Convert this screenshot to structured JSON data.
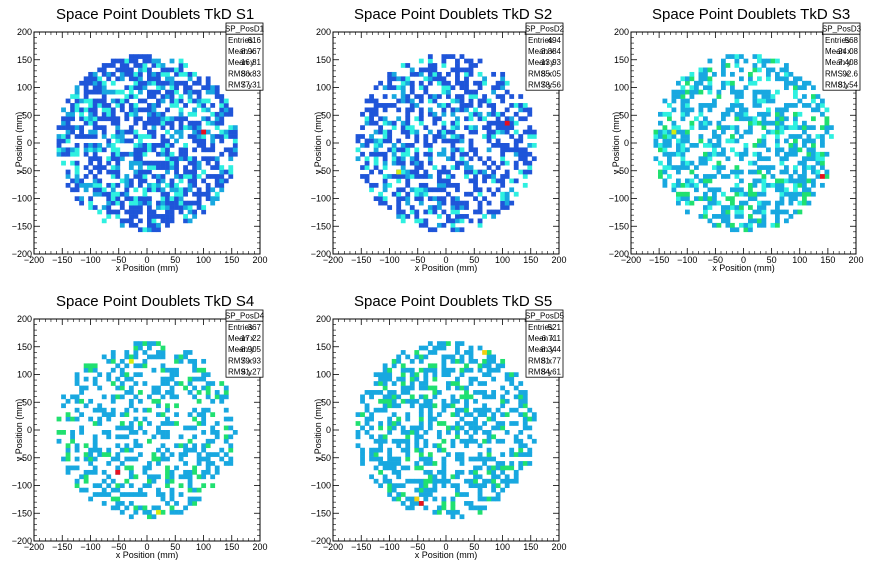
{
  "chart_data": [
    {
      "type": "heatmap",
      "title": "Space Point Doublets TkD S1",
      "xlabel": "x Position (mm)",
      "ylabel": "y Position (mm)",
      "xlim": [
        -200,
        200
      ],
      "ylim": [
        -200,
        200
      ],
      "xticks": [
        "−200",
        "−150",
        "−100",
        "−50",
        "0",
        "50",
        "100",
        "150",
        "200"
      ],
      "yticks": [
        "200",
        "150",
        "100",
        "50",
        "0",
        "−50",
        "−100",
        "−150",
        "−200"
      ],
      "stats": {
        "name": "SP_PosD1",
        "rows": [
          [
            "Entries",
            "616"
          ],
          [
            "Mean x",
            "8.967"
          ],
          [
            "Mean y",
            "-16.81"
          ],
          [
            "RMS x",
            "86.83"
          ],
          [
            "RMS y",
            "77.31"
          ]
        ]
      },
      "bin_size_mm": 8,
      "radius_mm": 160,
      "fill_fraction": 0.62,
      "palette": [
        "#1f55d9",
        "#1f55d9",
        "#1f55d9",
        "#18a8e0",
        "#2ef0e0"
      ],
      "hot_cells": [
        [
          96,
          16,
          "#e8101e"
        ]
      ]
    },
    {
      "type": "heatmap",
      "title": "Space Point Doublets TkD S2",
      "xlabel": "x Position (mm)",
      "ylabel": "y Position (mm)",
      "xlim": [
        -200,
        200
      ],
      "ylim": [
        -200,
        200
      ],
      "xticks": [
        "−200",
        "−150",
        "−100",
        "−50",
        "0",
        "50",
        "100",
        "150",
        "200"
      ],
      "yticks": [
        "200",
        "150",
        "100",
        "50",
        "0",
        "−50",
        "−100",
        "−150",
        "−200"
      ],
      "stats": {
        "name": "SP_PosD2",
        "rows": [
          [
            "Entries",
            "494"
          ],
          [
            "Mean x",
            "3.884"
          ],
          [
            "Mean y",
            "-13.93"
          ],
          [
            "RMS x",
            "85.05"
          ],
          [
            "RMS y",
            "78.56"
          ]
        ]
      },
      "bin_size_mm": 8,
      "radius_mm": 160,
      "fill_fraction": 0.52,
      "palette": [
        "#1f55d9",
        "#1f55d9",
        "#1f55d9",
        "#1f55d9",
        "#18a8e0",
        "#2ef0e0"
      ],
      "hot_cells": [
        [
          104,
          32,
          "#e8101e"
        ],
        [
          -88,
          -56,
          "#d4ec10"
        ]
      ]
    },
    {
      "type": "heatmap",
      "title": "Space Point Doublets TkD S3",
      "xlabel": "x Position (mm)",
      "ylabel": "y Position (mm)",
      "xlim": [
        -200,
        200
      ],
      "ylim": [
        -200,
        200
      ],
      "xticks": [
        "−200",
        "−150",
        "−100",
        "−50",
        "0",
        "50",
        "100",
        "150",
        "200"
      ],
      "yticks": [
        "200",
        "150",
        "100",
        "50",
        "0",
        "−50",
        "−100",
        "−150",
        "−200"
      ],
      "stats": {
        "name": "SP_PosD3",
        "rows": [
          [
            "Entries",
            "568"
          ],
          [
            "Mean x",
            "-24.08"
          ],
          [
            "Mean y",
            "7.408"
          ],
          [
            "RMS x",
            "92.6"
          ],
          [
            "RMS y",
            "81.54"
          ]
        ]
      },
      "bin_size_mm": 8,
      "radius_mm": 160,
      "fill_fraction": 0.5,
      "palette": [
        "#18a8e0",
        "#18a8e0",
        "#18a8e0",
        "#18a8e0",
        "#2ef0e0",
        "#20e070"
      ],
      "hot_cells": [
        [
          136,
          -64,
          "#e8101e"
        ],
        [
          -144,
          24,
          "#20e070"
        ],
        [
          -128,
          16,
          "#d4ec10"
        ]
      ]
    },
    {
      "type": "heatmap",
      "title": "Space Point Doublets TkD S4",
      "xlabel": "x Position (mm)",
      "ylabel": "y Position (mm)",
      "xlim": [
        -200,
        200
      ],
      "ylim": [
        -200,
        200
      ],
      "xticks": [
        "−200",
        "−150",
        "−100",
        "−50",
        "0",
        "50",
        "100",
        "150",
        "200"
      ],
      "yticks": [
        "200",
        "150",
        "100",
        "50",
        "0",
        "−50",
        "−100",
        "−150",
        "−200"
      ],
      "stats": {
        "name": "SP_PosD4",
        "rows": [
          [
            "Entries",
            "367"
          ],
          [
            "Mean x",
            "-17.22"
          ],
          [
            "Mean y",
            "-8.905"
          ],
          [
            "RMS x",
            "79.93"
          ],
          [
            "RMS y",
            "91.27"
          ]
        ]
      },
      "bin_size_mm": 8,
      "radius_mm": 160,
      "fill_fraction": 0.4,
      "palette": [
        "#18a8e0",
        "#18a8e0",
        "#18a8e0",
        "#18a8e0",
        "#20e070"
      ],
      "hot_cells": [
        [
          -56,
          -80,
          "#e8101e"
        ],
        [
          -32,
          120,
          "#d4ec10"
        ],
        [
          16,
          -152,
          "#d4ec10"
        ]
      ]
    },
    {
      "type": "heatmap",
      "title": "Space Point Doublets TkD S5",
      "xlabel": "x Position (mm)",
      "ylabel": "y Position (mm)",
      "xlim": [
        -200,
        200
      ],
      "ylim": [
        -200,
        200
      ],
      "xticks": [
        "−200",
        "−150",
        "−100",
        "−50",
        "0",
        "50",
        "100",
        "150",
        "200"
      ],
      "yticks": [
        "200",
        "150",
        "100",
        "50",
        "0",
        "−50",
        "−100",
        "−150",
        "−200"
      ],
      "stats": {
        "name": "SP_PosD5",
        "rows": [
          [
            "Entries",
            "521"
          ],
          [
            "Mean x",
            "-6.711"
          ],
          [
            "Mean y",
            "8.344"
          ],
          [
            "RMS x",
            "81.77"
          ],
          [
            "RMS y",
            "84.61"
          ]
        ]
      },
      "bin_size_mm": 8,
      "radius_mm": 160,
      "fill_fraction": 0.48,
      "palette": [
        "#18a8e0",
        "#18a8e0",
        "#18a8e0",
        "#18a8e0",
        "#20e070"
      ],
      "hot_cells": [
        [
          -48,
          -136,
          "#e8101e"
        ],
        [
          -56,
          -128,
          "#f0d010"
        ],
        [
          64,
          136,
          "#f0d010"
        ]
      ]
    }
  ]
}
